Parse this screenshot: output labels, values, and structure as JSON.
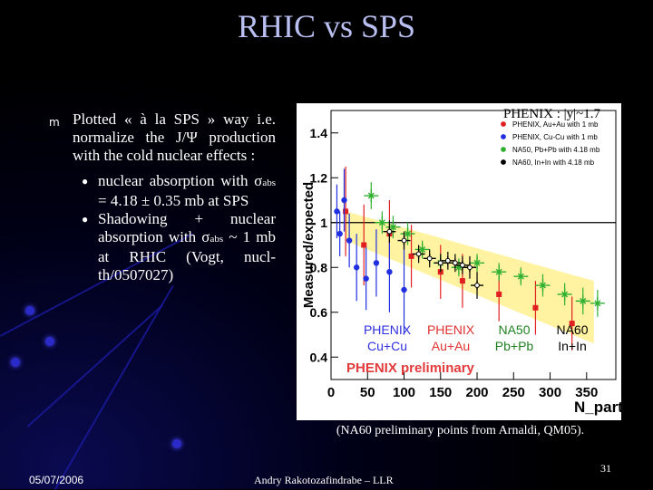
{
  "slide": {
    "title": "RHIC vs SPS",
    "bullet_main": "Plotted « à la SPS » way i.e. normalize the J/Ψ production with the cold nuclear effects :",
    "sub1_pre": "nuclear absorption with σ",
    "sub1_sub": "abs",
    "sub1_post": " = 4.18 ± 0.35 mb at SPS",
    "sub2_pre": "Shadowing + nuclear absorption with σ",
    "sub2_sub": "abs",
    "sub2_post": " ~ 1 mb at RHIC (Vogt, nucl-th/0507027)",
    "plot_header": "PHENIX : |y|~1.7",
    "caption": "(NA60 preliminary points from Arnaldi, QM05).",
    "date": "05/07/2006",
    "author": "Andry Rakotozafindrabe – LLR",
    "page": "31"
  },
  "chart_data": {
    "type": "scatter",
    "ylabel": "Measured/expected",
    "xlabel": "N_part",
    "xlim": [
      0,
      390
    ],
    "ylim": [
      0.3,
      1.5
    ],
    "xticks": [
      "0",
      "50",
      "100",
      "150",
      "200",
      "250",
      "300",
      "350"
    ],
    "yticks": [
      "0.4",
      "0.6",
      "0.8",
      "1",
      "1.2",
      "1.4"
    ],
    "legend": [
      "PHENIX, Au+Au with 1 mb",
      "PHENIX, Cu-Cu with 1 mb",
      "NA50, Pb+Pb with 4.18 mb",
      "NA60, In+In with 4.18 mb"
    ],
    "bottom_labels": [
      {
        "top": "PHENIX",
        "bottom": "Cu+Cu",
        "color": "#3030e0"
      },
      {
        "top": "PHENIX",
        "bottom": "Au+Au",
        "color": "#e03030"
      },
      {
        "top": "NA50",
        "bottom": "Pb+Pb",
        "color": "#208020"
      },
      {
        "top": "NA60",
        "bottom": "In+In",
        "color": "#000000"
      }
    ],
    "watermark": "PHENIX preliminary",
    "series": [
      {
        "name": "PHENIX, Au+Au with 1 mb",
        "color": "#e02020",
        "marker": "square",
        "x": [
          20,
          45,
          80,
          110,
          150,
          180,
          230,
          280,
          330
        ],
        "y": [
          1.05,
          0.9,
          0.95,
          0.85,
          0.78,
          0.74,
          0.68,
          0.62,
          0.55
        ],
        "err": [
          0.2,
          0.18,
          0.15,
          0.14,
          0.12,
          0.12,
          0.12,
          0.12,
          0.12
        ]
      },
      {
        "name": "PHENIX, Cu-Cu with 1 mb",
        "color": "#2030e0",
        "marker": "circle",
        "x": [
          8,
          12,
          18,
          25,
          35,
          48,
          62,
          80,
          100
        ],
        "y": [
          1.05,
          0.95,
          1.1,
          0.92,
          0.8,
          0.75,
          0.82,
          0.78,
          0.7
        ],
        "err": [
          0.12,
          0.1,
          0.14,
          0.12,
          0.15,
          0.14,
          0.15,
          0.18,
          0.2
        ]
      },
      {
        "name": "NA50, Pb+Pb with 4.18 mb",
        "color": "#30b030",
        "marker": "star-open",
        "x": [
          55,
          70,
          85,
          105,
          125,
          150,
          175,
          200,
          230,
          260,
          290,
          320,
          345,
          365
        ],
        "y": [
          1.12,
          1.0,
          0.98,
          0.95,
          0.88,
          0.82,
          0.8,
          0.82,
          0.78,
          0.76,
          0.72,
          0.68,
          0.65,
          0.64
        ],
        "err": [
          0.06,
          0.05,
          0.05,
          0.05,
          0.04,
          0.04,
          0.04,
          0.04,
          0.04,
          0.04,
          0.05,
          0.05,
          0.06,
          0.06
        ]
      },
      {
        "name": "NA60, In+In with 4.18 mb",
        "color": "#000000",
        "marker": "cross-open",
        "x": [
          80,
          100,
          120,
          135,
          150,
          160,
          170,
          180,
          190,
          200
        ],
        "y": [
          0.96,
          0.92,
          0.86,
          0.84,
          0.82,
          0.83,
          0.82,
          0.81,
          0.8,
          0.72
        ],
        "err": [
          0.05,
          0.04,
          0.04,
          0.04,
          0.04,
          0.04,
          0.04,
          0.04,
          0.05,
          0.06
        ]
      }
    ],
    "band": {
      "color": "#fff2a0",
      "x": [
        20,
        360
      ],
      "y_top": [
        1.05,
        0.74
      ],
      "y_bot": [
        0.92,
        0.46
      ]
    },
    "ref_line": 1.0
  }
}
